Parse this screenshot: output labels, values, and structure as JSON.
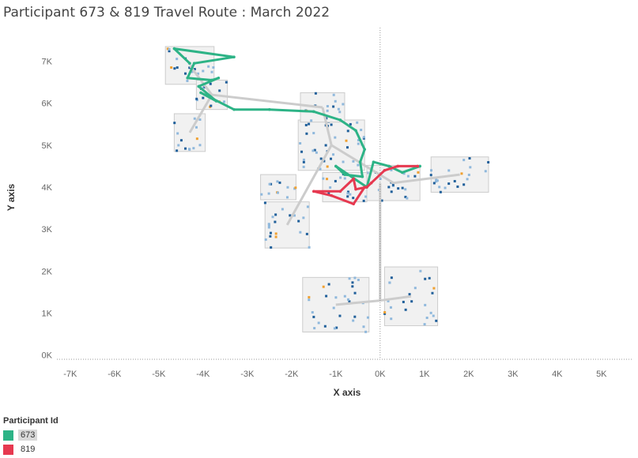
{
  "title": "Participant 673 & 819 Travel Route :  March 2022",
  "chart_data": {
    "type": "scatter",
    "title": "Participant 673 & 819 Travel Route :  March 2022",
    "xlabel": "X axis",
    "ylabel": "Y axis",
    "xlim": [
      -7300,
      5700
    ],
    "ylim": [
      -100,
      7800
    ],
    "x_ticks": [
      -7000,
      -6000,
      -5000,
      -4000,
      -3000,
      -2000,
      -1000,
      0,
      1000,
      2000,
      3000,
      4000,
      5000
    ],
    "x_tick_labels": [
      "-7K",
      "-6K",
      "-5K",
      "-4K",
      "-3K",
      "-2K",
      "-1K",
      "0K",
      "1K",
      "2K",
      "3K",
      "4K",
      "5K"
    ],
    "y_ticks": [
      0,
      1000,
      2000,
      3000,
      4000,
      5000,
      6000,
      7000
    ],
    "y_tick_labels": [
      "0K",
      "1K",
      "2K",
      "3K",
      "4K",
      "5K",
      "6K",
      "7K"
    ],
    "zero_reference_line": true,
    "legend_title": "Participant Id",
    "legend_position": "bottom-left",
    "series": [
      {
        "name": "673",
        "color": "#2db386",
        "points": [
          [
            -4300,
            6950
          ],
          [
            -4650,
            7300
          ],
          [
            -3300,
            7100
          ],
          [
            -4200,
            6950
          ],
          [
            -4350,
            6600
          ],
          [
            -3800,
            6550
          ],
          [
            -3650,
            6600
          ],
          [
            -4100,
            6400
          ],
          [
            -3700,
            6050
          ],
          [
            -4050,
            6250
          ],
          [
            -3300,
            5850
          ],
          [
            -2500,
            5850
          ],
          [
            -1500,
            5800
          ],
          [
            -900,
            5600
          ],
          [
            -550,
            5350
          ],
          [
            -350,
            4900
          ],
          [
            -450,
            4600
          ],
          [
            -400,
            4250
          ],
          [
            -800,
            4300
          ],
          [
            -1000,
            4500
          ],
          [
            -300,
            4000
          ],
          [
            -150,
            4600
          ],
          [
            200,
            4500
          ],
          [
            500,
            4350
          ],
          [
            900,
            4500
          ]
        ]
      },
      {
        "name": "819",
        "color": "#e63950",
        "points": [
          [
            850,
            4500
          ],
          [
            400,
            4500
          ],
          [
            100,
            4400
          ],
          [
            -200,
            4100
          ],
          [
            -300,
            4000
          ],
          [
            -550,
            3950
          ],
          [
            -600,
            4200
          ],
          [
            -900,
            3900
          ],
          [
            -1500,
            3900
          ],
          [
            -1100,
            3800
          ],
          [
            -600,
            3600
          ],
          [
            -350,
            4000
          ]
        ]
      }
    ]
  }
}
